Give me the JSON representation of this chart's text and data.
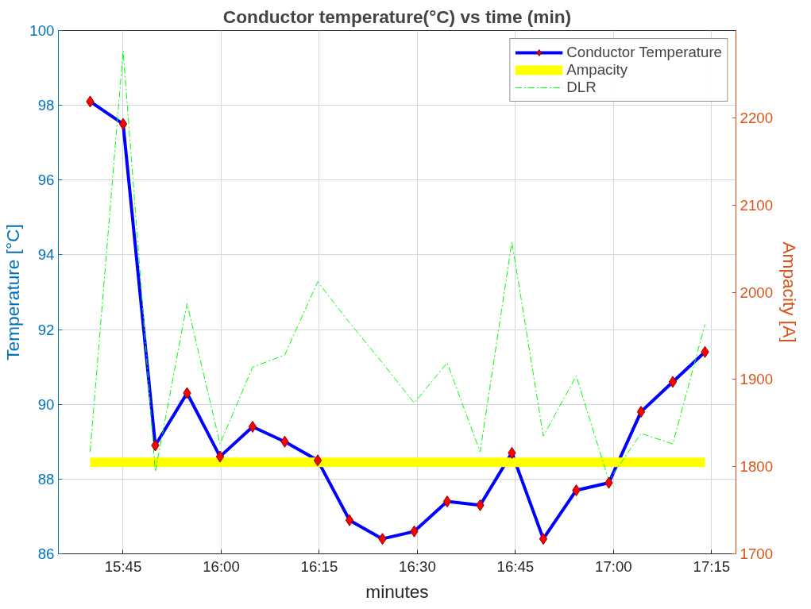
{
  "chart_data": {
    "type": "line",
    "title": "Conductor temperature(°C) vs time (min)",
    "xlabel": "minutes",
    "ylabel": "Temperature [°C]",
    "y2label": "Ampacity [A]",
    "x": [
      15.666,
      15.75,
      15.832,
      15.913,
      15.997,
      16.08,
      16.162,
      16.246,
      16.327,
      16.411,
      16.492,
      16.576,
      16.66,
      16.741,
      16.821,
      16.905,
      16.988,
      17.07,
      17.151,
      17.233
    ],
    "series": [
      {
        "name": "Conductor Temperature",
        "color": "#0000ff",
        "marker": "diamond",
        "line_style": "solid",
        "values": [
          98.1,
          97.5,
          88.9,
          90.3,
          88.6,
          89.4,
          89.0,
          88.5,
          86.9,
          86.4,
          86.6,
          87.4,
          87.3,
          88.7,
          86.4,
          87.7,
          87.9,
          89.8,
          90.6,
          91.4
        ]
      },
      {
        "name": "Ampacity",
        "color": "#ffff00",
        "axis": "y2",
        "marker": "none",
        "line_style": "solid",
        "x": [
          15.666,
          17.233
        ],
        "values": [
          1805,
          1805
        ]
      },
      {
        "name": "DLR",
        "color": "#00ff00",
        "axis": "y2",
        "marker": "none",
        "line_style": "dashed",
        "values": [
          1817,
          2277,
          1794,
          1987,
          1826,
          1914,
          1928,
          2012,
          1965,
          1919,
          1873,
          1919,
          1817,
          2058,
          1835,
          1904,
          1784,
          1838,
          1826,
          1963
        ]
      }
    ],
    "xlim": [
      15.585,
      17.312
    ],
    "xticks": [
      {
        "value": 15.75,
        "label": "15:45"
      },
      {
        "value": 16.0,
        "label": "16:00"
      },
      {
        "value": 16.25,
        "label": "16:15"
      },
      {
        "value": 16.5,
        "label": "16:30"
      },
      {
        "value": 16.75,
        "label": "16:45"
      },
      {
        "value": 17.0,
        "label": "17:00"
      },
      {
        "value": 17.25,
        "label": "17:15"
      }
    ],
    "ylim": [
      86,
      100
    ],
    "yticks": [
      86,
      88,
      90,
      92,
      94,
      96,
      98,
      100
    ],
    "y2lim": [
      1700,
      2300
    ],
    "y2ticks": [
      1700,
      1800,
      1900,
      2000,
      2100,
      2200
    ],
    "grid": true,
    "legend": "top right"
  }
}
